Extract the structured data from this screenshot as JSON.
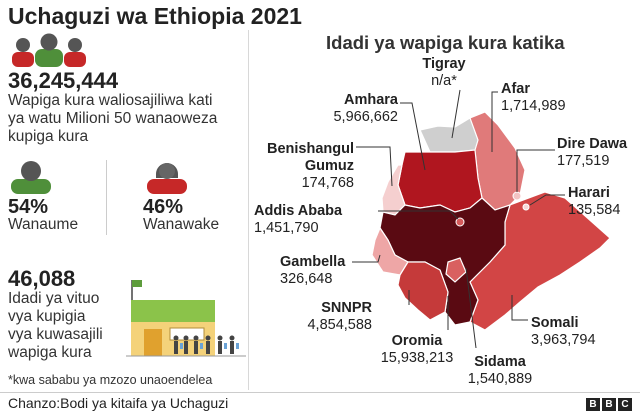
{
  "title": "Uchaguzi wa Ethiopia 2021",
  "registered": {
    "number": "36,245,444",
    "desc_lines": [
      "Wapiga kura waliosajiliwa kati",
      "ya watu Milioni 50 wanaoweza",
      "kupiga kura"
    ]
  },
  "men": {
    "pct": "54%",
    "label": "Wanaume"
  },
  "women": {
    "pct": "46%",
    "label": "Wanawake"
  },
  "stations": {
    "number": "46,088",
    "desc_lines": [
      "Idadi ya vituo",
      "vya kupigia",
      "vya kuwasajili",
      "wapiga kura"
    ]
  },
  "footnote": "*kwa sababu ya mzozo unaoendelea",
  "source": "Chanzo:Bodi ya kitaifa ya Uchaguzi",
  "bbc_letters": [
    "B",
    "B",
    "C"
  ],
  "map": {
    "title": "Idadi ya wapiga kura katika",
    "regions": [
      {
        "name": "Tigray",
        "value": "n/a*",
        "color": "#cfcfcf"
      },
      {
        "name": "Amhara",
        "value": "5,966,662",
        "color": "#b0161f"
      },
      {
        "name": "Afar",
        "value": "1,714,989",
        "color": "#e07a7a"
      },
      {
        "name": "Benishangul Gumuz",
        "name_lines": [
          "Benishangul",
          "Gumuz"
        ],
        "value": "174,768",
        "color": "#f5cfcf"
      },
      {
        "name": "Dire Dawa",
        "value": "177,519",
        "color": "#f3c4c4"
      },
      {
        "name": "Harari",
        "value": "135,584",
        "color": "#f7d7d7"
      },
      {
        "name": "Addis Ababa",
        "value": "1,451,790",
        "color": "#d65b5b"
      },
      {
        "name": "Gambella",
        "value": "326,648",
        "color": "#eea6a6"
      },
      {
        "name": "SNNPR",
        "value": "4,854,588",
        "color": "#c53a3a"
      },
      {
        "name": "Oromia",
        "value": "15,938,213",
        "color": "#5a0a12"
      },
      {
        "name": "Somali",
        "value": "3,963,794",
        "color": "#d24545"
      },
      {
        "name": "Sidama",
        "value": "1,540,889",
        "color": "#d96060"
      }
    ]
  }
}
